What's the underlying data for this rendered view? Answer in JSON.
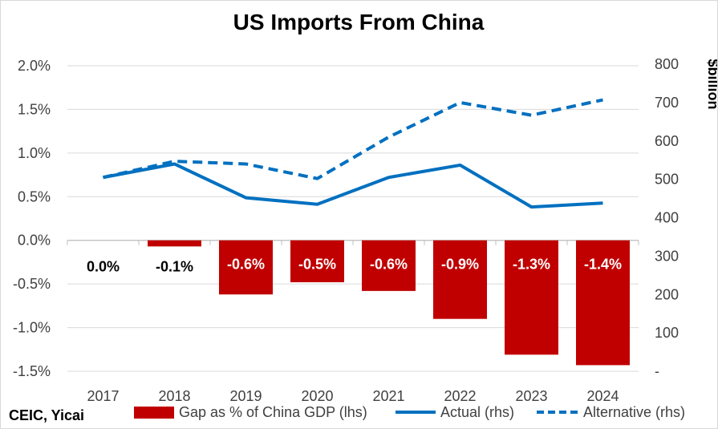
{
  "chart_data": {
    "type": "bar+line",
    "title": "US Imports From China",
    "source": "CEIC, Yicai",
    "categories": [
      "2017",
      "2018",
      "2019",
      "2020",
      "2021",
      "2022",
      "2023",
      "2024"
    ],
    "lhs": {
      "ylim": [
        -1.5,
        2.0
      ],
      "ticks": [
        "2.0%",
        "1.5%",
        "1.0%",
        "0.5%",
        "0.0%",
        "-0.5%",
        "-1.0%",
        "-1.5%"
      ],
      "tick_values": [
        2.0,
        1.5,
        1.0,
        0.5,
        0.0,
        -0.5,
        -1.0,
        -1.5
      ]
    },
    "rhs": {
      "label": "$billion",
      "ylim": [
        0,
        800
      ],
      "ticks": [
        "800",
        "700",
        "600",
        "500",
        "400",
        "300",
        "200",
        "100",
        "-"
      ],
      "tick_values": [
        800,
        700,
        600,
        500,
        400,
        300,
        200,
        100,
        0
      ]
    },
    "series": [
      {
        "name": "Gap as % of China GDP (lhs)",
        "type": "bar",
        "axis": "lhs",
        "color": "#c00000",
        "values": [
          0.0,
          -0.07,
          -0.62,
          -0.48,
          -0.58,
          -0.9,
          -1.31,
          -1.43
        ],
        "labels": [
          "0.0%",
          "-0.1%",
          "-0.6%",
          "-0.5%",
          "-0.6%",
          "-0.9%",
          "-1.3%",
          "-1.4%"
        ]
      },
      {
        "name": "Actual (rhs)",
        "type": "line",
        "axis": "rhs",
        "color": "#0070c0",
        "style": "solid",
        "values": [
          505,
          540,
          452,
          435,
          505,
          537,
          428,
          438
        ]
      },
      {
        "name": "Alternative (rhs)",
        "type": "line",
        "axis": "rhs",
        "color": "#0070c0",
        "style": "dashed",
        "values": [
          505,
          547,
          540,
          502,
          610,
          700,
          667,
          707
        ]
      }
    ],
    "grid": true,
    "legend": "bottom"
  }
}
